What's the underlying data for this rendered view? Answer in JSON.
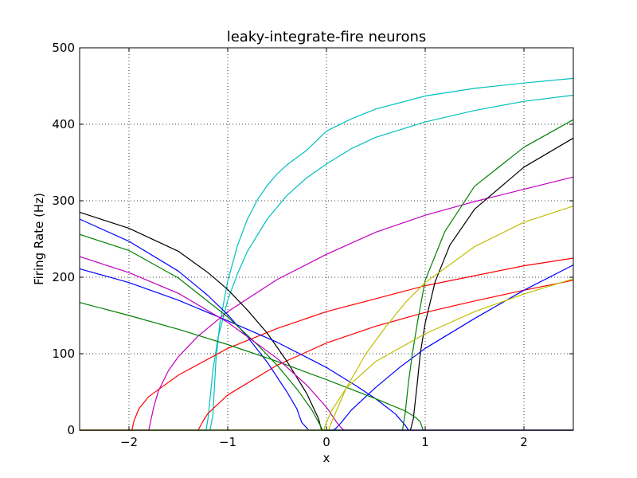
{
  "chart_data": {
    "type": "line",
    "title": "leaky-integrate-fire neurons",
    "xlabel": "x",
    "ylabel": "Firing Rate (Hz)",
    "xlim": [
      -2.5,
      2.5
    ],
    "ylim": [
      0,
      500
    ],
    "grid": true,
    "grid_style": "dotted",
    "x_ticks": [
      -2,
      -1,
      0,
      1,
      2
    ],
    "x_tick_labels": [
      "−2",
      "−1",
      "0",
      "1",
      "2"
    ],
    "y_ticks": [
      0,
      100,
      200,
      300,
      400,
      500
    ],
    "y_tick_labels": [
      "0",
      "100",
      "200",
      "300",
      "400",
      "500"
    ],
    "series": [
      {
        "color": "#00bfbf",
        "x": [
          -2.5,
          -1.18,
          -1.15,
          -1.12,
          -1.08,
          -1.0,
          -0.9,
          -0.8,
          -0.7,
          -0.6,
          -0.5,
          -0.4,
          -0.2,
          0.0,
          0.25,
          0.5,
          1.0,
          1.5,
          2.0,
          2.5
        ],
        "y": [
          0,
          0,
          20,
          90,
          140,
          195,
          242,
          276,
          301,
          320,
          335,
          347,
          366,
          391,
          407,
          420,
          437,
          447,
          454,
          460
        ]
      },
      {
        "color": "#00bfbf",
        "x": [
          -2.5,
          -1.22,
          -1.2,
          -1.15,
          -1.1,
          -1.0,
          -0.9,
          -0.8,
          -0.6,
          -0.4,
          -0.2,
          0.0,
          0.25,
          0.5,
          1.0,
          1.5,
          2.0,
          2.5
        ],
        "y": [
          0,
          0,
          15,
          78,
          120,
          170,
          205,
          234,
          276,
          307,
          330,
          348,
          368,
          383,
          403,
          418,
          430,
          438
        ]
      },
      {
        "color": "#bf00bf",
        "x": [
          -2.5,
          -1.8,
          -1.75,
          -1.7,
          -1.6,
          -1.5,
          -1.3,
          -1.0,
          -0.5,
          0.0,
          0.5,
          1.0,
          1.5,
          2.0,
          2.5
        ],
        "y": [
          0,
          0,
          30,
          52,
          78,
          96,
          123,
          155,
          197,
          230,
          259,
          281,
          299,
          315,
          331
        ]
      },
      {
        "color": "#ff0000",
        "x": [
          -2.5,
          -1.97,
          -1.95,
          -1.9,
          -1.8,
          -1.5,
          -1.0,
          -0.5,
          0.0,
          0.5,
          1.0,
          1.5,
          2.0,
          2.5
        ],
        "y": [
          0,
          0,
          12,
          28,
          44,
          72,
          107,
          133,
          155,
          172,
          189,
          202,
          215,
          225
        ]
      },
      {
        "color": "#ff0000",
        "x": [
          -2.5,
          -1.3,
          -1.25,
          -1.2,
          -1.0,
          -0.5,
          0.0,
          0.5,
          1.0,
          1.5,
          2.0,
          2.5
        ],
        "y": [
          0,
          0,
          12,
          22,
          46,
          85,
          114,
          136,
          154,
          169,
          183,
          196
        ]
      },
      {
        "color": "#000000",
        "x": [
          -2.5,
          -2.0,
          -1.5,
          -1.2,
          -1.0,
          -0.8,
          -0.6,
          -0.4,
          -0.2,
          -0.08,
          -0.05,
          0.85,
          0.88,
          0.92,
          0.95,
          1.0,
          1.1,
          1.25,
          1.5,
          2.0,
          2.5
        ],
        "y": [
          285,
          264,
          234,
          206,
          184,
          157,
          127,
          90,
          48,
          15,
          0,
          0,
          15,
          62,
          100,
          140,
          194,
          242,
          289,
          344,
          382
        ]
      },
      {
        "color": "#0000ff",
        "x": [
          -2.5,
          -2.0,
          -1.5,
          -1.2,
          -1.0,
          -0.8,
          -0.6,
          -0.4,
          -0.3,
          -0.25,
          -0.2,
          -0.18,
          -0.15,
          2.5
        ],
        "y": [
          276,
          247,
          208,
          176,
          151,
          122,
          89,
          50,
          28,
          10,
          3,
          0,
          0,
          0
        ]
      },
      {
        "color": "#0000ff",
        "x": [
          -2.5,
          -2.0,
          -1.5,
          -1.0,
          -0.5,
          0.0,
          0.3,
          0.5,
          0.7,
          0.8,
          0.82,
          0.83,
          2.5
        ],
        "y": [
          211,
          193,
          170,
          143,
          115,
          82,
          58,
          41,
          21,
          6,
          2,
          0,
          0
        ]
      },
      {
        "color": "#0000ff",
        "x": [
          -2.5,
          0.07,
          0.1,
          0.15,
          0.25,
          0.5,
          0.75,
          1.0,
          1.5,
          2.0,
          2.5
        ],
        "y": [
          0,
          0,
          3,
          10,
          26,
          56,
          83,
          107,
          146,
          183,
          216
        ]
      },
      {
        "color": "#008000",
        "x": [
          -2.5,
          -2.0,
          -1.5,
          -1.0,
          -0.7,
          -0.5,
          -0.3,
          -0.15,
          -0.07,
          -0.04,
          2.5
        ],
        "y": [
          256,
          235,
          199,
          148,
          112,
          85,
          54,
          27,
          8,
          0,
          0
        ]
      },
      {
        "color": "#008000",
        "x": [
          -2.5,
          -2.0,
          -1.5,
          -1.0,
          -0.5,
          0.0,
          0.5,
          0.8,
          0.9,
          0.95,
          0.98,
          2.5
        ],
        "y": [
          167,
          150,
          132,
          112,
          90,
          66,
          41,
          25,
          17,
          11,
          0,
          0
        ]
      },
      {
        "color": "#008000",
        "x": [
          -2.5,
          0.77,
          0.8,
          0.83,
          0.87,
          0.92,
          1.0,
          1.2,
          1.5,
          2.0,
          2.5
        ],
        "y": [
          0,
          0,
          25,
          62,
          100,
          140,
          196,
          260,
          319,
          370,
          406
        ]
      },
      {
        "color": "#bf00bf",
        "x": [
          -2.5,
          -2.0,
          -1.5,
          -1.0,
          -0.5,
          -0.2,
          0.0,
          0.1,
          0.15,
          0.18,
          0.2,
          2.5
        ],
        "y": [
          227,
          206,
          179,
          141,
          94,
          59,
          30,
          11,
          3,
          0,
          0,
          0
        ]
      },
      {
        "color": "#bfbf00",
        "x": [
          -2.5,
          0.02,
          0.05,
          0.1,
          0.2,
          0.4,
          0.6,
          0.8,
          1.0,
          1.5,
          2.0,
          2.5
        ],
        "y": [
          0,
          0,
          10,
          25,
          55,
          100,
          135,
          167,
          193,
          240,
          272,
          293
        ]
      },
      {
        "color": "#bfbf00",
        "x": [
          -2.5,
          -0.03,
          0.0,
          0.05,
          0.2,
          0.5,
          1.0,
          1.5,
          2.0,
          2.5
        ],
        "y": [
          0,
          0,
          10,
          25,
          55,
          90,
          126,
          155,
          178,
          198
        ]
      }
    ]
  }
}
